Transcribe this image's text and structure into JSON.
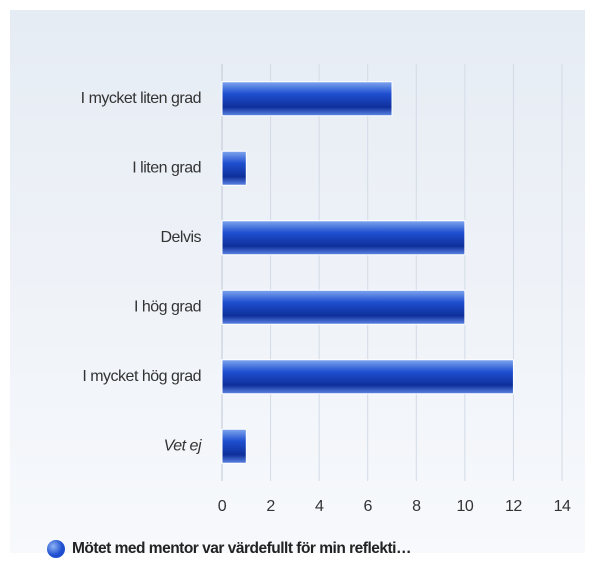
{
  "chart_data": {
    "type": "bar",
    "orientation": "horizontal",
    "categories": [
      "I mycket liten grad",
      "I liten grad",
      "Delvis",
      "I hög grad",
      "I mycket hög grad",
      "Vet ej"
    ],
    "series": [
      {
        "name": "Mötet med mentor var värdefullt för min reflekti…",
        "color": "#1f4fd0",
        "values": [
          7,
          1,
          10,
          10,
          12,
          1
        ]
      }
    ],
    "xlim": [
      0,
      14
    ],
    "xticks": [
      0,
      2,
      4,
      6,
      8,
      10,
      12,
      14
    ],
    "grid": true,
    "legend": "bottom"
  }
}
